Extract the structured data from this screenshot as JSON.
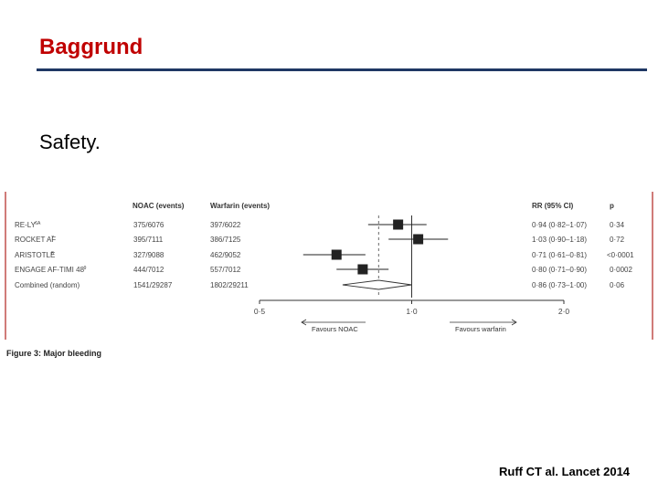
{
  "slide": {
    "title": "Baggrund",
    "subtitle": "Safety.",
    "citation": "Ruff CT al. Lancet 2014",
    "colors": {
      "title": "#c00000",
      "rule": "#1f3864",
      "frame": "#c0504d"
    }
  },
  "chart_data": {
    "type": "forest",
    "caption": "Figure 3: Major bleeding",
    "headers": {
      "noac": "NOAC (events)",
      "warfarin": "Warfarin (events)",
      "rr": "RR (95% CI)",
      "p": "p"
    },
    "axis": {
      "min": 0.5,
      "max": 2.0,
      "ticks": [
        "0·5",
        "1·0",
        "2·0"
      ],
      "tick_values": [
        0.5,
        1.0,
        2.0
      ],
      "scale": "log"
    },
    "favours": {
      "left": "Favours NOAC",
      "right": "Favours warfarin"
    },
    "studies": [
      {
        "name": "RE-LY",
        "sup": "6A",
        "noac": "375/6076",
        "warfarin": "397/6022",
        "rr": 0.94,
        "lo": 0.82,
        "hi": 1.07,
        "rr_text": "0·94 (0·82–1·07)",
        "p": "0·34"
      },
      {
        "name": "ROCKET AF",
        "sup": "7",
        "noac": "395/7111",
        "warfarin": "386/7125",
        "rr": 1.03,
        "lo": 0.9,
        "hi": 1.18,
        "rr_text": "1·03 (0·90–1·18)",
        "p": "0·72"
      },
      {
        "name": "ARISTOTLE",
        "sup": "8",
        "noac": "327/9088",
        "warfarin": "462/9052",
        "rr": 0.71,
        "lo": 0.61,
        "hi": 0.81,
        "rr_text": "0·71 (0·61–0·81)",
        "p": "<0·0001"
      },
      {
        "name": "ENGAGE AF-TIMI 48",
        "sup": "9",
        "noac": "444/7012",
        "warfarin": "557/7012",
        "rr": 0.8,
        "lo": 0.71,
        "hi": 0.9,
        "rr_text": "0·80 (0·71–0·90)",
        "p": "0·0002"
      }
    ],
    "combined": {
      "name": "Combined (random)",
      "noac": "1541/29287",
      "warfarin": "1802/29211",
      "rr": 0.86,
      "lo": 0.73,
      "hi": 1.0,
      "rr_text": "0·86 (0·73–1·00)",
      "p": "0·06"
    }
  }
}
